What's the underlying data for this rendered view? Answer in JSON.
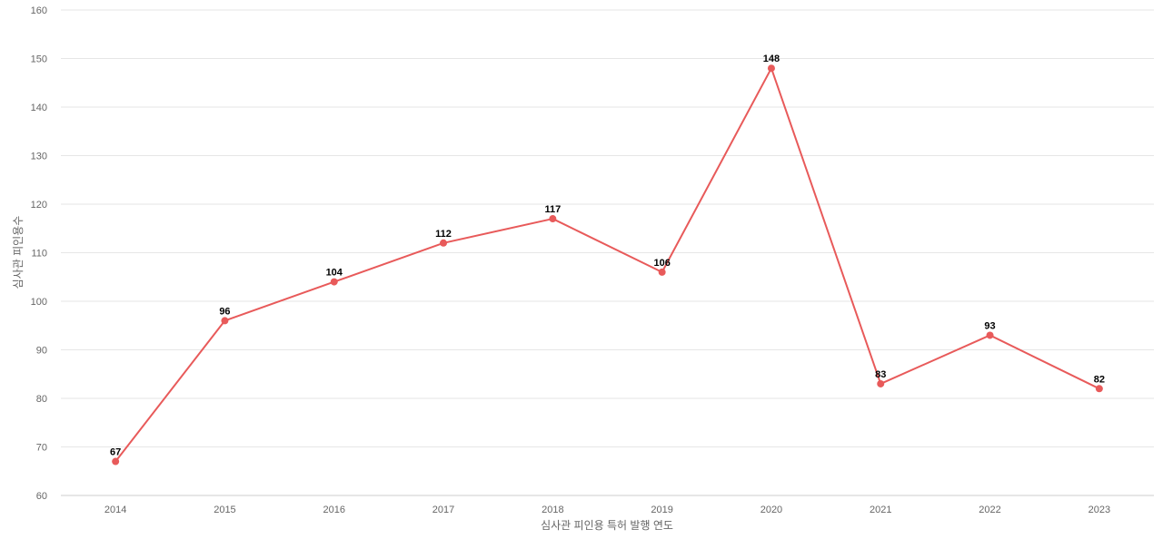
{
  "chart_data": {
    "type": "line",
    "title": "",
    "xlabel": "심사관 피인용 특허 발행 연도",
    "ylabel": "심사관 피인용수",
    "categories": [
      "2014",
      "2015",
      "2016",
      "2017",
      "2018",
      "2019",
      "2020",
      "2021",
      "2022",
      "2023"
    ],
    "series": [
      {
        "values": [
          67,
          96,
          104,
          112,
          117,
          106,
          148,
          83,
          93,
          82
        ],
        "color": "#e85a5a"
      }
    ],
    "ylim": [
      60,
      160
    ],
    "yticks": [
      60,
      70,
      80,
      90,
      100,
      110,
      120,
      130,
      140,
      150,
      160
    ],
    "grid": true,
    "legend": "none",
    "data_labels": true
  }
}
